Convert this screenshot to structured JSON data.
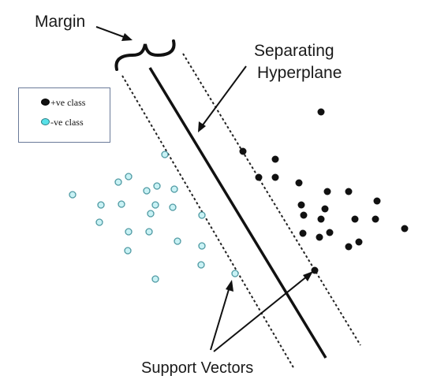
{
  "labels": {
    "margin": "Margin",
    "hyperplane_line1": "Separating",
    "hyperplane_line2": "Hyperplane",
    "support_vectors": "Support Vectors"
  },
  "legend": {
    "positive": "+ve class",
    "negative": "-ve class"
  },
  "colors": {
    "positive_point": "#111111",
    "negative_fill": "#c9f2f5",
    "negative_stroke": "#4f9aa3",
    "line": "#111111"
  }
}
